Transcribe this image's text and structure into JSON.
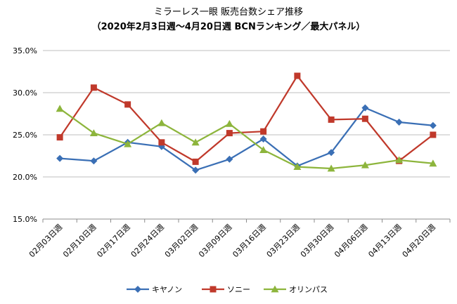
{
  "chart_data": {
    "type": "line",
    "title": "ミラーレス一眼 販売台数シェア推移",
    "subtitle": "（2020年2月3日週～4月20日週 BCNランキング／最大パネル）",
    "categories": [
      "02月03日週",
      "02月10日週",
      "02月17日週",
      "02月24日週",
      "03月02日週",
      "03月09日週",
      "03月16日週",
      "03月23日週",
      "03月30日週",
      "04月06日週",
      "04月13日週",
      "04月20日週"
    ],
    "ylim": [
      15.0,
      35.0
    ],
    "yticks": [
      15.0,
      20.0,
      25.0,
      30.0,
      35.0
    ],
    "ytick_labels": [
      "15.0%",
      "20.0%",
      "25.0%",
      "30.0%",
      "35.0%"
    ],
    "grid": true,
    "legend_position": "bottom",
    "series": [
      {
        "name": "キヤノン",
        "color": "#3a6fb5",
        "marker": "diamond",
        "values": [
          22.2,
          21.9,
          24.1,
          23.6,
          20.8,
          22.1,
          24.5,
          21.3,
          22.9,
          28.2,
          26.5,
          26.1
        ]
      },
      {
        "name": "ソニー",
        "color": "#c0392b",
        "marker": "square",
        "values": [
          24.7,
          30.6,
          28.6,
          24.1,
          21.8,
          25.2,
          25.4,
          32.0,
          26.8,
          26.9,
          21.9,
          25.0
        ]
      },
      {
        "name": "オリンパス",
        "color": "#8db53c",
        "marker": "triangle",
        "values": [
          28.1,
          25.2,
          23.9,
          26.4,
          24.1,
          26.3,
          23.2,
          21.2,
          21.0,
          21.4,
          22.0,
          21.6
        ]
      }
    ]
  }
}
